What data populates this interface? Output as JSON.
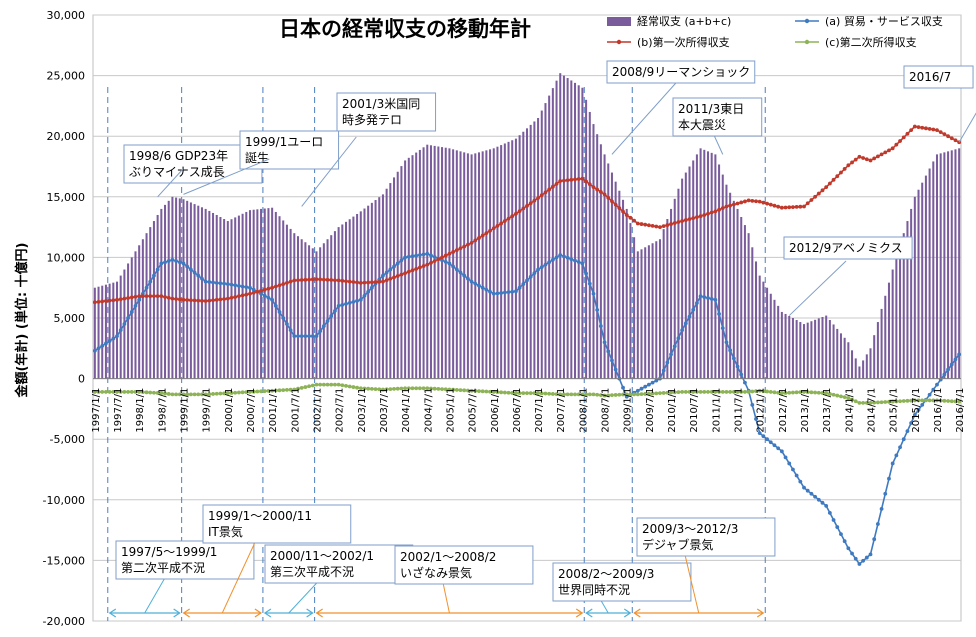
{
  "chart_data": {
    "type": "bar",
    "title": "日本の経常収支の移動年計",
    "ylabel": "金額(年計) (単位: 十億円)",
    "xlabel": "",
    "ylim": [
      -20000,
      30000
    ],
    "yticks": [
      30000,
      25000,
      20000,
      15000,
      10000,
      5000,
      0,
      -5000,
      -10000,
      -15000,
      -20000
    ],
    "ytick_labels": [
      "30,000",
      "25,000",
      "20,000",
      "15,000",
      "10,000",
      "5,000",
      "0",
      "-5,000",
      "-10,000",
      "-15,000",
      "-20,000"
    ],
    "grid": true,
    "legend_position": "top-right",
    "x_start": "1997/1",
    "x_end": "2016/7",
    "xtick_labels": [
      "1997/1/1",
      "1997/7/1",
      "1998/1/1",
      "1998/7/1",
      "1999/1/1",
      "1999/7/1",
      "2000/1/1",
      "2000/7/1",
      "2001/1/1",
      "2001/7/1",
      "2002/1/1",
      "2002/7/1",
      "2003/1/1",
      "2003/7/1",
      "2004/1/1",
      "2004/7/1",
      "2005/1/1",
      "2005/7/1",
      "2006/1/1",
      "2006/7/1",
      "2007/1/1",
      "2007/7/1",
      "2008/1/1",
      "2008/7/1",
      "2009/1/1",
      "2009/7/1",
      "2010/1/1",
      "2010/7/1",
      "2011/1/1",
      "2011/7/1",
      "2012/1/1",
      "2012/7/1",
      "2013/1/1",
      "2013/7/1",
      "2014/1/1",
      "2014/7/1",
      "2015/1/1",
      "2015/7/1",
      "2016/1/1",
      "2016/7/1"
    ],
    "series": [
      {
        "name": "経常収支 (a+b+c)",
        "kind": "bar",
        "color": "#7a5c9c",
        "anchors": [
          [
            "1997/1",
            7500
          ],
          [
            "1997/7",
            8000
          ],
          [
            "1998/1",
            11000
          ],
          [
            "1998/7",
            14000
          ],
          [
            "1998/10",
            15000
          ],
          [
            "1999/1",
            14800
          ],
          [
            "1999/7",
            14000
          ],
          [
            "2000/1",
            13000
          ],
          [
            "2000/7",
            13900
          ],
          [
            "2001/1",
            14100
          ],
          [
            "2001/7",
            12000
          ],
          [
            "2002/1",
            10500
          ],
          [
            "2002/7",
            12500
          ],
          [
            "2003/1",
            13800
          ],
          [
            "2003/7",
            15200
          ],
          [
            "2004/1",
            18000
          ],
          [
            "2004/7",
            19300
          ],
          [
            "2005/1",
            19000
          ],
          [
            "2005/7",
            18500
          ],
          [
            "2006/1",
            19000
          ],
          [
            "2006/7",
            19800
          ],
          [
            "2007/1",
            21500
          ],
          [
            "2007/7",
            25200
          ],
          [
            "2008/1",
            24000
          ],
          [
            "2008/4",
            21000
          ],
          [
            "2008/7",
            18500
          ],
          [
            "2009/1",
            14000
          ],
          [
            "2009/4",
            10500
          ],
          [
            "2009/10",
            11500
          ],
          [
            "2010/4",
            16500
          ],
          [
            "2010/9",
            19000
          ],
          [
            "2011/1",
            18500
          ],
          [
            "2011/4",
            16000
          ],
          [
            "2011/10",
            12000
          ],
          [
            "2012/1",
            8500
          ],
          [
            "2012/7",
            5500
          ],
          [
            "2013/1",
            4500
          ],
          [
            "2013/7",
            5200
          ],
          [
            "2014/1",
            3000
          ],
          [
            "2014/4",
            1000
          ],
          [
            "2014/7",
            2500
          ],
          [
            "2015/1",
            9000
          ],
          [
            "2015/7",
            15000
          ],
          [
            "2016/1",
            18500
          ],
          [
            "2016/7",
            19000
          ]
        ]
      },
      {
        "name": "(a) 貿易・サービス収支",
        "kind": "line",
        "color": "#3f7ac0",
        "anchors": [
          [
            "1997/1",
            2300
          ],
          [
            "1997/7",
            3500
          ],
          [
            "1998/1",
            6500
          ],
          [
            "1998/7",
            9500
          ],
          [
            "1998/10",
            9800
          ],
          [
            "1999/1",
            9500
          ],
          [
            "1999/7",
            8000
          ],
          [
            "2000/1",
            7800
          ],
          [
            "2000/7",
            7500
          ],
          [
            "2001/1",
            6500
          ],
          [
            "2001/7",
            3500
          ],
          [
            "2002/1",
            3500
          ],
          [
            "2002/7",
            6000
          ],
          [
            "2003/1",
            6500
          ],
          [
            "2003/7",
            8500
          ],
          [
            "2004/1",
            10000
          ],
          [
            "2004/7",
            10300
          ],
          [
            "2005/1",
            9500
          ],
          [
            "2005/7",
            8000
          ],
          [
            "2006/1",
            7000
          ],
          [
            "2006/7",
            7200
          ],
          [
            "2007/1",
            9000
          ],
          [
            "2007/7",
            10200
          ],
          [
            "2008/1",
            9500
          ],
          [
            "2008/4",
            7000
          ],
          [
            "2008/7",
            3000
          ],
          [
            "2009/1",
            -1500
          ],
          [
            "2009/4",
            -1000
          ],
          [
            "2009/10",
            0
          ],
          [
            "2010/4",
            4000
          ],
          [
            "2010/9",
            6800
          ],
          [
            "2011/1",
            6500
          ],
          [
            "2011/4",
            3000
          ],
          [
            "2011/10",
            -1000
          ],
          [
            "2012/1",
            -4500
          ],
          [
            "2012/7",
            -6000
          ],
          [
            "2013/1",
            -9000
          ],
          [
            "2013/7",
            -10500
          ],
          [
            "2014/1",
            -14000
          ],
          [
            "2014/4",
            -15300
          ],
          [
            "2014/7",
            -14500
          ],
          [
            "2015/1",
            -7000
          ],
          [
            "2015/7",
            -3000
          ],
          [
            "2016/1",
            -500
          ],
          [
            "2016/7",
            2000
          ]
        ]
      },
      {
        "name": "(b)第一次所得収支",
        "kind": "line",
        "color": "#c0392b",
        "anchors": [
          [
            "1997/1",
            6300
          ],
          [
            "1997/7",
            6500
          ],
          [
            "1998/1",
            6800
          ],
          [
            "1998/7",
            6800
          ],
          [
            "1998/10",
            6600
          ],
          [
            "1999/1",
            6500
          ],
          [
            "1999/7",
            6400
          ],
          [
            "2000/1",
            6600
          ],
          [
            "2000/7",
            7000
          ],
          [
            "2001/1",
            7500
          ],
          [
            "2001/7",
            8100
          ],
          [
            "2002/1",
            8200
          ],
          [
            "2002/7",
            8100
          ],
          [
            "2003/1",
            7900
          ],
          [
            "2003/7",
            8000
          ],
          [
            "2004/1",
            8700
          ],
          [
            "2004/7",
            9400
          ],
          [
            "2005/1",
            10300
          ],
          [
            "2005/7",
            11200
          ],
          [
            "2006/1",
            12400
          ],
          [
            "2006/7",
            13600
          ],
          [
            "2007/1",
            14900
          ],
          [
            "2007/7",
            16300
          ],
          [
            "2008/1",
            16500
          ],
          [
            "2008/4",
            15800
          ],
          [
            "2008/7",
            15200
          ],
          [
            "2009/1",
            13500
          ],
          [
            "2009/4",
            12800
          ],
          [
            "2009/10",
            12500
          ],
          [
            "2010/4",
            13000
          ],
          [
            "2010/9",
            13400
          ],
          [
            "2011/1",
            13800
          ],
          [
            "2011/4",
            14200
          ],
          [
            "2011/10",
            14700
          ],
          [
            "2012/1",
            14600
          ],
          [
            "2012/7",
            14100
          ],
          [
            "2013/1",
            14200
          ],
          [
            "2013/7",
            15800
          ],
          [
            "2014/1",
            17600
          ],
          [
            "2014/4",
            18300
          ],
          [
            "2014/7",
            18000
          ],
          [
            "2015/1",
            19000
          ],
          [
            "2015/7",
            20800
          ],
          [
            "2016/1",
            20500
          ],
          [
            "2016/7",
            19500
          ]
        ]
      },
      {
        "name": "(c)第二次所得収支",
        "kind": "line",
        "color": "#8db356",
        "anchors": [
          [
            "1997/1",
            -1100
          ],
          [
            "1997/7",
            -1100
          ],
          [
            "1998/1",
            -1100
          ],
          [
            "1998/7",
            -1200
          ],
          [
            "1998/10",
            -1300
          ],
          [
            "1999/1",
            -1300
          ],
          [
            "1999/7",
            -1300
          ],
          [
            "2000/1",
            -1200
          ],
          [
            "2000/7",
            -1100
          ],
          [
            "2001/1",
            -1000
          ],
          [
            "2001/7",
            -900
          ],
          [
            "2002/1",
            -500
          ],
          [
            "2002/7",
            -500
          ],
          [
            "2003/1",
            -800
          ],
          [
            "2003/7",
            -900
          ],
          [
            "2004/1",
            -800
          ],
          [
            "2004/7",
            -800
          ],
          [
            "2005/1",
            -900
          ],
          [
            "2005/7",
            -1000
          ],
          [
            "2006/1",
            -1100
          ],
          [
            "2006/7",
            -1200
          ],
          [
            "2007/1",
            -1200
          ],
          [
            "2007/7",
            -1300
          ],
          [
            "2008/1",
            -1300
          ],
          [
            "2008/4",
            -1300
          ],
          [
            "2008/7",
            -1400
          ],
          [
            "2009/1",
            -1300
          ],
          [
            "2009/4",
            -1300
          ],
          [
            "2009/10",
            -1200
          ],
          [
            "2010/4",
            -1100
          ],
          [
            "2010/9",
            -1100
          ],
          [
            "2011/1",
            -1100
          ],
          [
            "2011/4",
            -1100
          ],
          [
            "2011/10",
            -1100
          ],
          [
            "2012/1",
            -1000
          ],
          [
            "2012/7",
            -1200
          ],
          [
            "2013/1",
            -1100
          ],
          [
            "2013/7",
            -1200
          ],
          [
            "2014/1",
            -1600
          ],
          [
            "2014/4",
            -2000
          ],
          [
            "2014/7",
            -2000
          ],
          [
            "2015/1",
            -1900
          ],
          [
            "2015/7",
            -1800
          ],
          [
            "2016/1",
            -1800
          ],
          [
            "2016/7",
            -1900
          ]
        ]
      }
    ],
    "event_lines": [
      "1997/5",
      "1999/1",
      "2000/11",
      "2002/1",
      "2008/2",
      "2009/3",
      "2012/3"
    ],
    "annotations": [
      {
        "text": [
          "1998/6 GDP23年",
          "ぶりマイナス成長"
        ],
        "date": "1998/6",
        "y": 15000
      },
      {
        "text": [
          "1999/1ユーロ",
          "誕生"
        ],
        "date": "1999/1",
        "y": 15200
      },
      {
        "text": [
          "2001/3米国同",
          "時多発テロ"
        ],
        "date": "2001/9",
        "y": 14200
      },
      {
        "text": [
          "2008/9リーマンショック"
        ],
        "date": "2008/9",
        "y": 18500
      },
      {
        "text": [
          "2011/3東日",
          "本大震災"
        ],
        "date": "2011/3",
        "y": 18500
      },
      {
        "text": [
          "2012/9アベノミクス"
        ],
        "date": "2012/9",
        "y": 5200
      },
      {
        "text": [
          "2016/7"
        ],
        "date": "2016/7",
        "y": 19500
      }
    ],
    "periods": [
      {
        "text": [
          "1997/5～1999/1",
          "第二次平成不況"
        ],
        "start": "1997/5",
        "end": "1999/1",
        "color": "#4fb0d8"
      },
      {
        "text": [
          "1999/1～2000/11",
          "IT景気"
        ],
        "start": "1999/1",
        "end": "2000/11",
        "color": "#f0922e"
      },
      {
        "text": [
          "2000/11～2002/1",
          "第三次平成不況"
        ],
        "start": "2000/11",
        "end": "2002/1",
        "color": "#4fb0d8"
      },
      {
        "text": [
          "2002/1～2008/2",
          "いざなみ景気"
        ],
        "start": "2002/1",
        "end": "2008/2",
        "color": "#f0922e"
      },
      {
        "text": [
          "2008/2～2009/3",
          "世界同時不況"
        ],
        "start": "2008/2",
        "end": "2009/3",
        "color": "#4fb0d8"
      },
      {
        "text": [
          "2009/3～2012/3",
          "デジャブ景気"
        ],
        "start": "2009/3",
        "end": "2012/3",
        "color": "#f0922e"
      }
    ]
  }
}
